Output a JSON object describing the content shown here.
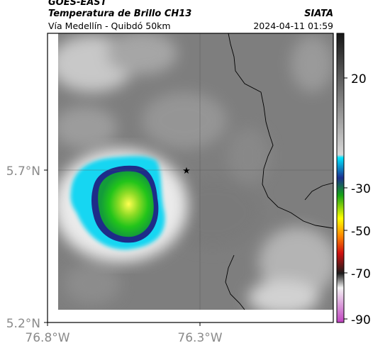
{
  "header": {
    "satellite": "GOES-EAST",
    "product": "Temperatura de Brillo CH13",
    "region": "Vía Medellín - Quibdó 50km",
    "org": "SIATA",
    "timestamp": "2024-04-11 01:59"
  },
  "map": {
    "lat_ticks": [
      "5.7°N",
      "5.2°N"
    ],
    "lon_ticks": [
      "76.8°W",
      "76.3°W"
    ],
    "marker": "star-marker"
  },
  "colorbar": {
    "ticks": [
      "20",
      "-30",
      "-50",
      "-70",
      "-90"
    ],
    "colors": {
      "warm_top": "#161616",
      "warm_bottom": "#d8d8d8",
      "cyan": "#00e5ff",
      "blue": "#1b2f8f",
      "green": "#22c41a",
      "yellow": "#ffff00",
      "red": "#d01010",
      "magenta": "#c042c0"
    }
  }
}
